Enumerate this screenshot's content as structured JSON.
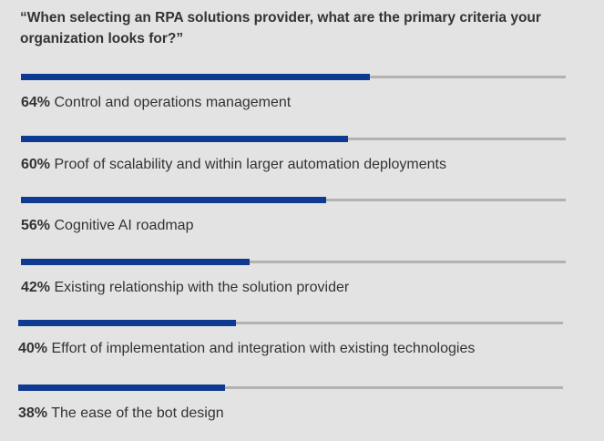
{
  "chart_data": {
    "type": "bar",
    "title": "“When selecting an RPA solutions provider, what are the primary criteria your organization looks for?”",
    "categories": [
      "Control and operations management",
      "Proof of scalability and within larger automation deployments",
      "Cognitive AI roadmap",
      "Existing relationship with the solution provider",
      "Effort of implementation and integration with existing technologies",
      "The ease of the bot design"
    ],
    "values": [
      64,
      60,
      56,
      42,
      40,
      38
    ],
    "value_labels": [
      "64%",
      "60%",
      "56%",
      "42%",
      "40%",
      "38%"
    ],
    "xlim": [
      0,
      100
    ],
    "orientation": "horizontal",
    "grid": false,
    "legend": "none",
    "colors": {
      "bar": "#0f3a91",
      "track": "#b2b2b2",
      "background": "#e3e3e3",
      "text": "#333333"
    }
  }
}
